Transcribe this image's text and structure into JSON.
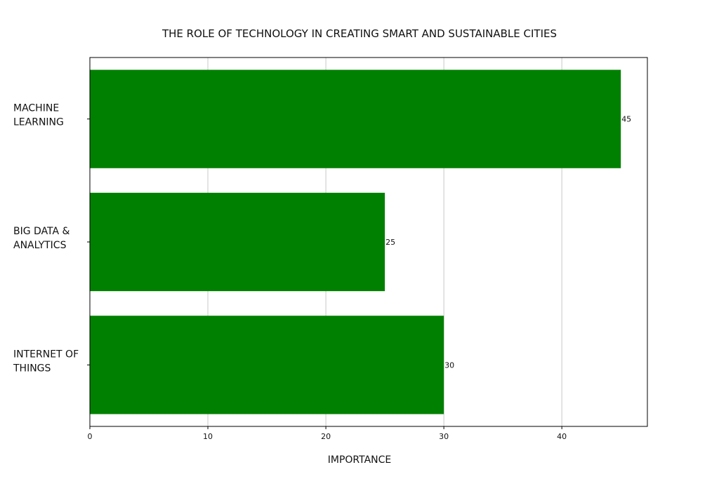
{
  "chart_data": {
    "type": "bar",
    "orientation": "horizontal",
    "title": "THE ROLE OF TECHNOLOGY IN CREATING SMART AND SUSTAINABLE CITIES",
    "xlabel": "IMPORTANCE",
    "ylabel": "",
    "categories": [
      [
        "MACHINE",
        "LEARNING"
      ],
      [
        "BIG DATA &",
        "ANALYTICS"
      ],
      [
        "INTERNET OF",
        "THINGS"
      ]
    ],
    "values": [
      45,
      25,
      30
    ],
    "data_labels": [
      "45",
      "25",
      "30"
    ],
    "xlim": [
      0,
      47.25
    ],
    "xticks": [
      0,
      10,
      20,
      30,
      40
    ],
    "xtick_labels": [
      "0",
      "10",
      "20",
      "30",
      "40"
    ],
    "grid": "vertical",
    "bar_color": "#008000"
  }
}
